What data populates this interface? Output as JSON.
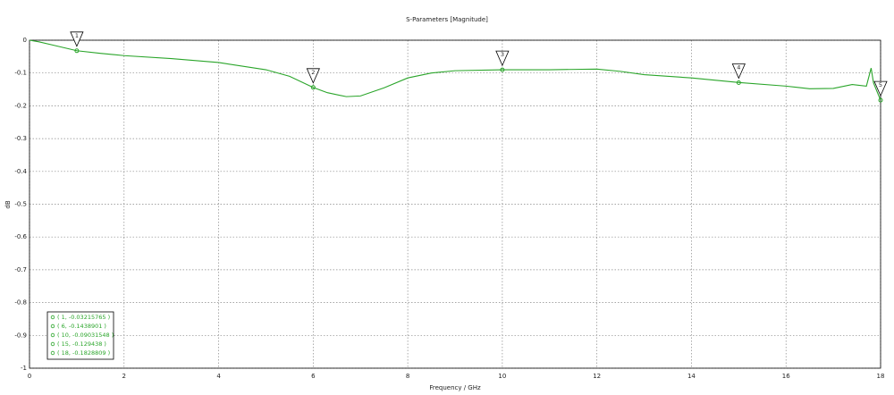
{
  "chart_data": {
    "type": "line",
    "title": "S-Parameters [Magnitude]",
    "x_label": "Frequency / GHz",
    "y_label": "dB",
    "x": [
      0,
      0.2,
      0.5,
      1,
      1.5,
      2,
      3,
      4,
      5,
      5.5,
      6,
      6.3,
      6.7,
      7,
      7.5,
      8,
      8.5,
      9,
      10,
      11,
      12,
      12.5,
      13,
      14,
      15,
      16,
      16.5,
      17,
      17.4,
      17.7,
      17.8,
      17.85,
      18
    ],
    "series": [
      {
        "color": "#2aa52a",
        "values": [
          0,
          -0.005,
          -0.015,
          -0.032,
          -0.04,
          -0.047,
          -0.056,
          -0.068,
          -0.09,
          -0.11,
          -0.144,
          -0.16,
          -0.172,
          -0.17,
          -0.145,
          -0.115,
          -0.1,
          -0.093,
          -0.09,
          -0.09,
          -0.088,
          -0.095,
          -0.105,
          -0.115,
          -0.129,
          -0.14,
          -0.148,
          -0.147,
          -0.135,
          -0.14,
          -0.085,
          -0.13,
          -0.183
        ]
      }
    ],
    "xlim": [
      0,
      18
    ],
    "xticks": [
      0,
      2,
      4,
      6,
      8,
      10,
      12,
      14,
      16,
      18
    ],
    "ylim": [
      -1,
      0
    ],
    "yticks": [
      0,
      -0.1,
      -0.2,
      -0.3,
      -0.4,
      -0.5,
      -0.6,
      -0.7,
      -0.8,
      -0.9,
      -1
    ],
    "grid": true,
    "markers": [
      {
        "id": "1",
        "x": 1,
        "y": -0.03215765,
        "label": "( 1, -0.03215765 )"
      },
      {
        "id": "2",
        "x": 6,
        "y": -0.1438901,
        "label": "( 6, -0.1438901 )"
      },
      {
        "id": "3",
        "x": 10,
        "y": -0.09031548,
        "label": "( 10, -0.09031548 )"
      },
      {
        "id": "4",
        "x": 15,
        "y": -0.129438,
        "label": "( 15, -0.129438 )"
      },
      {
        "id": "5",
        "x": 18,
        "y": -0.1828809,
        "label": "( 18, -0.1828809 )"
      }
    ]
  }
}
